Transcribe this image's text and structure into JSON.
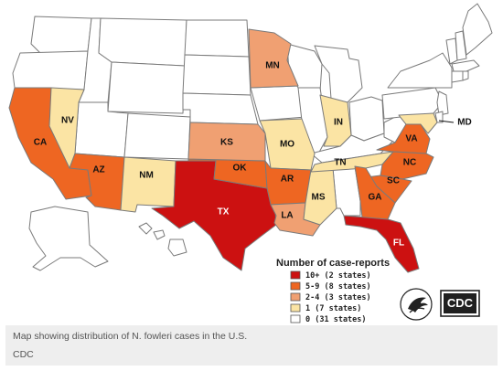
{
  "colors": {
    "c10": "#cc1111",
    "c59": "#ee6622",
    "c24": "#f0a072",
    "c1": "#fbe4a4",
    "c0": "#ffffff"
  },
  "states": [
    {
      "id": "CA",
      "label": "CA",
      "bin": "c59"
    },
    {
      "id": "NV",
      "label": "NV",
      "bin": "c1"
    },
    {
      "id": "AZ",
      "label": "AZ",
      "bin": "c59"
    },
    {
      "id": "NM",
      "label": "NM",
      "bin": "c1"
    },
    {
      "id": "TX",
      "label": "TX",
      "bin": "c10"
    },
    {
      "id": "OK",
      "label": "OK",
      "bin": "c59"
    },
    {
      "id": "KS",
      "label": "KS",
      "bin": "c24"
    },
    {
      "id": "MN",
      "label": "MN",
      "bin": "c24"
    },
    {
      "id": "MO",
      "label": "MO",
      "bin": "c1"
    },
    {
      "id": "AR",
      "label": "AR",
      "bin": "c59"
    },
    {
      "id": "LA",
      "label": "LA",
      "bin": "c24"
    },
    {
      "id": "MS",
      "label": "MS",
      "bin": "c1"
    },
    {
      "id": "IN",
      "label": "IN",
      "bin": "c1"
    },
    {
      "id": "TN",
      "label": "TN",
      "bin": "c1"
    },
    {
      "id": "VA",
      "label": "VA",
      "bin": "c59"
    },
    {
      "id": "NC",
      "label": "NC",
      "bin": "c59"
    },
    {
      "id": "SC",
      "label": "SC",
      "bin": "c59"
    },
    {
      "id": "GA",
      "label": "GA",
      "bin": "c59"
    },
    {
      "id": "FL",
      "label": "FL",
      "bin": "c10"
    },
    {
      "id": "MD",
      "label": "MD",
      "bin": "c1"
    }
  ],
  "legend": {
    "title": "Number of case-reports",
    "items": [
      {
        "label": "10+  (2 states)",
        "bin": "c10"
      },
      {
        "label": "5-9  (8 states)",
        "bin": "c59"
      },
      {
        "label": "2-4  (3 states)",
        "bin": "c24"
      },
      {
        "label": "1  (7 states)",
        "bin": "c1"
      },
      {
        "label": "0  (31 states)",
        "bin": "c0"
      }
    ]
  },
  "logo": {
    "text": "CDC"
  },
  "caption": {
    "text": "Map showing distribution of N. fowleri cases in the U.S.",
    "credit": "CDC"
  }
}
